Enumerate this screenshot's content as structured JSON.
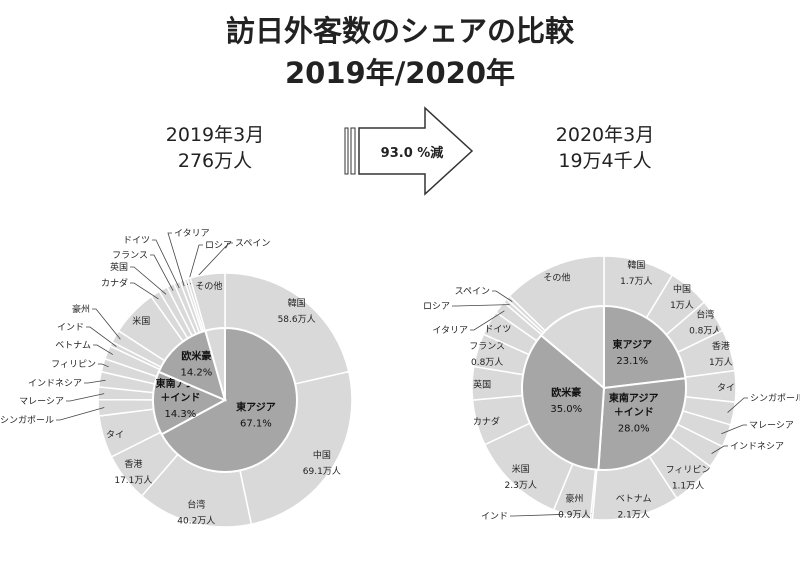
{
  "title_line1": "訪日外客数のシェアの比較",
  "title_line2": "2019年/2020年",
  "left_period": {
    "month": "2019年3月",
    "total": "276万人"
  },
  "right_period": {
    "month": "2020年3月",
    "total": "19万4千人"
  },
  "arrow_label": "93.0 %減",
  "colors": {
    "outer": "#d9d9d9",
    "inner": "#a6a6a6",
    "stroke": "#ffffff",
    "leader": "#444444"
  },
  "chart_data": [
    {
      "type": "pie",
      "name": "2019年3月",
      "inner": [
        {
          "label": "東アジア",
          "share": "67.1%",
          "value": 67.1
        },
        {
          "label": "東南アジア＋インド",
          "share": "14.3%",
          "value": 14.3
        },
        {
          "label": "欧米豪",
          "share": "14.2%",
          "value": 14.2
        },
        {
          "label": "その他",
          "share": "",
          "value": 4.4
        }
      ],
      "outer": [
        {
          "label": "韓国",
          "amount": "58.6万人",
          "value": 58.6
        },
        {
          "label": "中国",
          "amount": "69.1万人",
          "value": 69.1
        },
        {
          "label": "台湾",
          "amount": "40.2万人",
          "value": 40.2
        },
        {
          "label": "香港",
          "amount": "17.1万人",
          "value": 17.1
        },
        {
          "label": "タイ",
          "amount": "",
          "value": 14.7
        },
        {
          "label": "シンガポール",
          "amount": "",
          "value": 5.6
        },
        {
          "label": "マレーシア",
          "amount": "",
          "value": 4.4
        },
        {
          "label": "インドネシア",
          "amount": "",
          "value": 5.3
        },
        {
          "label": "フィリピン",
          "amount": "",
          "value": 4.6
        },
        {
          "label": "ベトナム",
          "amount": "",
          "value": 4.7
        },
        {
          "label": "インド",
          "amount": "",
          "value": 1.6
        },
        {
          "label": "豪州",
          "amount": "",
          "value": 4.4
        },
        {
          "label": "米国",
          "amount": "",
          "value": 16.3
        },
        {
          "label": "カナダ",
          "amount": "",
          "value": 3.3
        },
        {
          "label": "英国",
          "amount": "",
          "value": 3.1
        },
        {
          "label": "フランス",
          "amount": "",
          "value": 2.6
        },
        {
          "label": "ドイツ",
          "amount": "",
          "value": 2.2
        },
        {
          "label": "イタリア",
          "amount": "",
          "value": 1.6
        },
        {
          "label": "ロシア",
          "amount": "",
          "value": 1.0
        },
        {
          "label": "スペイン",
          "amount": "",
          "value": 1.1
        },
        {
          "label": "その他",
          "amount": "",
          "value": 12.1
        }
      ]
    },
    {
      "type": "pie",
      "name": "2020年3月",
      "inner": [
        {
          "label": "東アジア",
          "share": "23.1%",
          "value": 23.1
        },
        {
          "label": "東南アジア＋インド",
          "share": "28.0%",
          "value": 28.0
        },
        {
          "label": "欧米豪",
          "share": "35.0%",
          "value": 35.0
        },
        {
          "label": "その他",
          "share": "",
          "value": 13.9
        }
      ],
      "outer": [
        {
          "label": "韓国",
          "amount": "1.7万人",
          "value": 1.7
        },
        {
          "label": "中国",
          "amount": "1万人",
          "value": 1.0
        },
        {
          "label": "台湾",
          "amount": "0.8万人",
          "value": 0.8
        },
        {
          "label": "香港",
          "amount": "1万人",
          "value": 1.0
        },
        {
          "label": "タイ",
          "amount": "",
          "value": 0.75
        },
        {
          "label": "シンガポール",
          "amount": "",
          "value": 0.55
        },
        {
          "label": "マレーシア",
          "amount": "",
          "value": 0.55
        },
        {
          "label": "インドネシア",
          "amount": "",
          "value": 0.55
        },
        {
          "label": "フィリピン",
          "amount": "1.1万人",
          "value": 1.1
        },
        {
          "label": "ベトナム",
          "amount": "2.1万人",
          "value": 2.1
        },
        {
          "label": "インド",
          "amount": "",
          "value": 0.05
        },
        {
          "label": "豪州",
          "amount": "0.9万人",
          "value": 0.9
        },
        {
          "label": "米国",
          "amount": "2.3万人",
          "value": 2.3
        },
        {
          "label": "カナダ",
          "amount": "",
          "value": 1.1
        },
        {
          "label": "英国",
          "amount": "",
          "value": 0.8
        },
        {
          "label": "フランス",
          "amount": "0.8万人",
          "value": 0.8
        },
        {
          "label": "ドイツ",
          "amount": "",
          "value": 0.6
        },
        {
          "label": "イタリア",
          "amount": "",
          "value": 0.3
        },
        {
          "label": "ロシア",
          "amount": "",
          "value": 0.1
        },
        {
          "label": "スペイン",
          "amount": "",
          "value": 0.1
        },
        {
          "label": "その他",
          "amount": "",
          "value": 2.5
        }
      ]
    }
  ]
}
